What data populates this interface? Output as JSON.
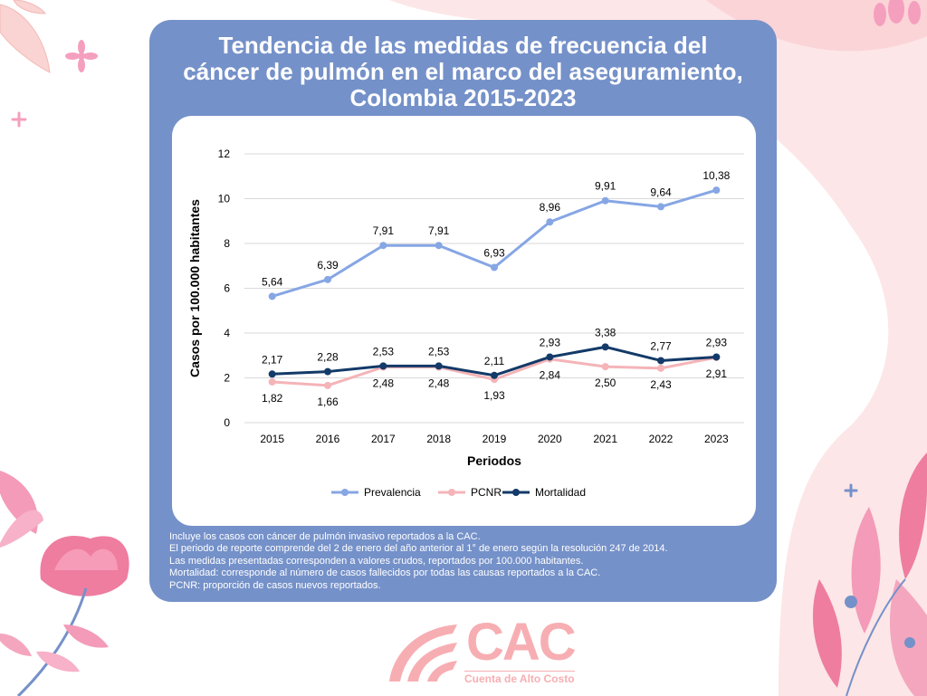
{
  "header": {
    "title_lines": [
      "Tendencia de las medidas de frecuencia del",
      "cáncer de pulmón en el marco del aseguramiento,",
      "Colombia 2015-2023"
    ]
  },
  "notes": [
    "Incluye los casos con cáncer de pulmón invasivo reportados a la CAC.",
    "El periodo de reporte comprende del 2 de enero del año anterior al 1° de enero según la resolución 247 de 2014.",
    "Las medidas presentadas corresponden a valores crudos, reportados por 100.000 habitantes.",
    "Mortalidad: corresponde al número de casos fallecidos por todas las causas reportados a la CAC.",
    "PCNR: proporción de casos nuevos reportados."
  ],
  "logo": {
    "text": "CAC",
    "subtitle": "Cuenta de Alto Costo"
  },
  "colors": {
    "card": "#7591c9",
    "prevalencia": "#86a6e4",
    "pcnr": "#f4b4b8",
    "mortalidad": "#133a68",
    "accent_pink": "#f7aeb2"
  },
  "chart_data": {
    "type": "line",
    "title": "",
    "xlabel": "Periodos",
    "ylabel": "Casos por 100.000 habitantes",
    "ylim": [
      0,
      12
    ],
    "yticks": [
      0,
      2,
      4,
      6,
      8,
      10,
      12
    ],
    "grid": "horizontal",
    "legend_position": "bottom",
    "categories": [
      "2015",
      "2016",
      "2017",
      "2018",
      "2019",
      "2020",
      "2021",
      "2022",
      "2023"
    ],
    "series": [
      {
        "name": "Prevalencia",
        "values": [
          5.64,
          6.39,
          7.91,
          7.91,
          6.93,
          8.96,
          9.91,
          9.64,
          10.38
        ],
        "labels": [
          "5,64",
          "6,39",
          "7,91",
          "7,91",
          "6,93",
          "8,96",
          "9,91",
          "9,64",
          "10,38"
        ],
        "label_position": "above"
      },
      {
        "name": "PCNR",
        "values": [
          1.82,
          1.66,
          2.48,
          2.48,
          1.93,
          2.84,
          2.5,
          2.43,
          2.91
        ],
        "labels": [
          "1,82",
          "1,66",
          "2,48",
          "2,48",
          "1,93",
          "2,84",
          "2,50",
          "2,43",
          "2,91"
        ],
        "label_position": "below"
      },
      {
        "name": "Mortalidad",
        "values": [
          2.17,
          2.28,
          2.53,
          2.53,
          2.11,
          2.93,
          3.38,
          2.77,
          2.93
        ],
        "labels": [
          "2,17",
          "2,28",
          "2,53",
          "2,53",
          "2,11",
          "2,93",
          "3,38",
          "2,77",
          "2,93"
        ],
        "label_position": "above"
      }
    ]
  }
}
